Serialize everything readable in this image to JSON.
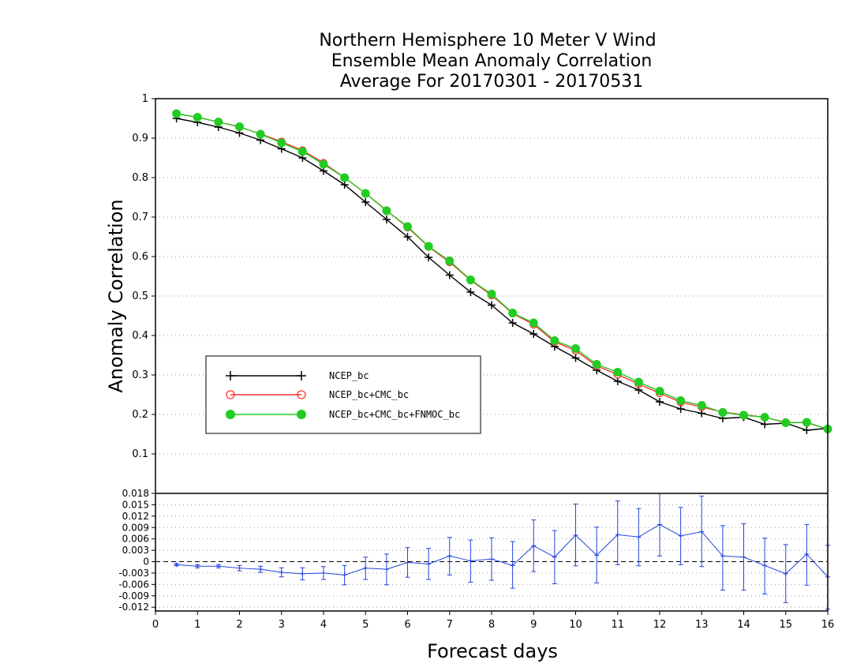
{
  "chart_data": [
    {
      "type": "line",
      "title_lines": [
        "Northern Hemisphere 10 Meter V Wind",
        "Ensemble Mean Anomaly Correlation",
        "Average For 20170301 - 20170531"
      ],
      "xlabel": "Forecast days",
      "ylabel": "Anomaly Correlation",
      "xlim": [
        0,
        16
      ],
      "ylim": [
        0,
        1
      ],
      "xticks": [
        "0",
        "1",
        "2",
        "3",
        "4",
        "5",
        "6",
        "7",
        "8",
        "9",
        "10",
        "11",
        "12",
        "13",
        "14",
        "15",
        "16"
      ],
      "yticks": [
        "0.1",
        "0.2",
        "0.3",
        "0.4",
        "0.5",
        "0.6",
        "0.7",
        "0.8",
        "0.9",
        "1"
      ],
      "grid": "dotted horizontal",
      "legend_position": "lower-left",
      "x": [
        0.5,
        1,
        1.5,
        2,
        2.5,
        3,
        3.5,
        4,
        4.5,
        5,
        5.5,
        6,
        6.5,
        7,
        7.5,
        8,
        8.5,
        9,
        9.5,
        10,
        10.5,
        11,
        11.5,
        12,
        12.5,
        13,
        13.5,
        14,
        14.5,
        15,
        15.5,
        16
      ],
      "series": [
        {
          "name": "NCEP_bc",
          "color": "#000000",
          "marker": "plus",
          "values": [
            0.95,
            0.94,
            0.928,
            0.913,
            0.895,
            0.873,
            0.85,
            0.817,
            0.782,
            0.738,
            0.694,
            0.65,
            0.598,
            0.553,
            0.51,
            0.477,
            0.432,
            0.404,
            0.372,
            0.343,
            0.312,
            0.284,
            0.262,
            0.232,
            0.214,
            0.203,
            0.19,
            0.193,
            0.175,
            0.178,
            0.16,
            0.165
          ]
        },
        {
          "name": "NCEP_bc+CMC_bc",
          "color": "#ff3030",
          "marker": "open-circle",
          "values": [
            0.962,
            0.953,
            0.941,
            0.928,
            0.911,
            0.891,
            0.869,
            0.837,
            0.8,
            0.76,
            0.717,
            0.674,
            0.625,
            0.586,
            0.54,
            0.502,
            0.456,
            0.428,
            0.384,
            0.362,
            0.323,
            0.301,
            0.277,
            0.254,
            0.231,
            0.219,
            0.206,
            0.199,
            0.193,
            0.18,
            0.179,
            0.163
          ]
        },
        {
          "name": "NCEP_bc+CMC_bc+FNMOC_bc",
          "color": "#22cc22",
          "marker": "filled-circle",
          "values": [
            0.962,
            0.953,
            0.941,
            0.929,
            0.91,
            0.888,
            0.866,
            0.834,
            0.8,
            0.76,
            0.716,
            0.676,
            0.626,
            0.589,
            0.541,
            0.505,
            0.457,
            0.432,
            0.387,
            0.367,
            0.327,
            0.307,
            0.282,
            0.259,
            0.235,
            0.223,
            0.205,
            0.198,
            0.193,
            0.179,
            0.18,
            0.163
          ]
        }
      ]
    },
    {
      "type": "line",
      "subtype": "difference-with-error-bars",
      "xlim": [
        0,
        16
      ],
      "ylim": [
        -0.013,
        0.018
      ],
      "yticks": [
        "0.018",
        "0.015",
        "0.012",
        "0.009",
        "0.006",
        "0.003",
        "0",
        "-0.003",
        "-0.006",
        "-0.009",
        "-0.012"
      ],
      "reference_line": "dashed at 0",
      "grid": "dotted horizontal",
      "color": "#2244dd",
      "x": [
        0.5,
        1,
        1.5,
        2,
        2.5,
        3,
        3.5,
        4,
        4.5,
        5,
        5.5,
        6,
        6.5,
        7,
        7.5,
        8,
        8.5,
        9,
        9.5,
        10,
        10.5,
        11,
        11.5,
        12,
        12.5,
        13,
        13.5,
        14,
        14.5,
        15,
        15.5,
        16
      ],
      "values": [
        -0.0008,
        -0.0012,
        -0.0012,
        -0.0017,
        -0.002,
        -0.0028,
        -0.0032,
        -0.003,
        -0.0035,
        -0.0017,
        -0.002,
        -0.0002,
        -0.0006,
        0.0015,
        0.0002,
        0.0007,
        -0.001,
        0.0042,
        0.0012,
        0.007,
        0.0017,
        0.0071,
        0.0065,
        0.0098,
        0.0068,
        0.0079,
        0.0015,
        0.0012,
        -0.001,
        -0.0032,
        0.002,
        -0.004
      ],
      "err_high": [
        -0.0005,
        -0.0008,
        -0.0008,
        -0.001,
        -0.0012,
        -0.0016,
        -0.0016,
        -0.0013,
        -0.001,
        0.0012,
        0.002,
        0.0037,
        0.0035,
        0.0064,
        0.0057,
        0.0063,
        0.0053,
        0.011,
        0.0082,
        0.0152,
        0.0091,
        0.016,
        0.014,
        0.0185,
        0.0143,
        0.0173,
        0.0095,
        0.01,
        0.0062,
        0.0045,
        0.0098,
        0.0043
      ],
      "err_low": [
        -0.0011,
        -0.0016,
        -0.0016,
        -0.0024,
        -0.0028,
        -0.004,
        -0.0048,
        -0.0047,
        -0.0061,
        -0.0047,
        -0.0061,
        -0.0041,
        -0.0047,
        -0.0035,
        -0.0054,
        -0.0049,
        -0.007,
        -0.0026,
        -0.0058,
        -0.0011,
        -0.0056,
        -0.0008,
        -0.0011,
        0.0015,
        -0.0008,
        -0.0013,
        -0.0075,
        -0.0075,
        -0.0085,
        -0.0108,
        -0.0062,
        -0.0125
      ]
    }
  ]
}
